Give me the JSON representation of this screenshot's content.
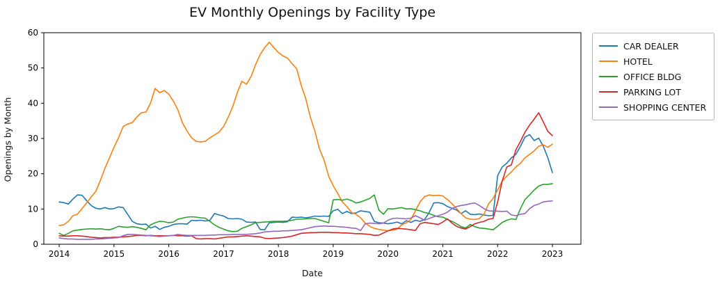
{
  "figure": {
    "background": "#ffffff",
    "spine_color": "#000000",
    "tick_label_color": "#000000"
  },
  "chart_data": {
    "type": "line",
    "title": "EV Monthly Openings by Facility Type",
    "xlabel": "Date",
    "ylabel": "Openings by Month",
    "x_months": {
      "start": "2014-01",
      "end": "2023-01",
      "step_months": 1,
      "n_points": 109
    },
    "xlim_decimal_years": [
      2013.72,
      2023.52
    ],
    "ylim": [
      0,
      60
    ],
    "xticks": [
      2014,
      2015,
      2016,
      2017,
      2018,
      2019,
      2020,
      2021,
      2022,
      2023
    ],
    "yticks": [
      0,
      10,
      20,
      30,
      40,
      50,
      60
    ],
    "grid": false,
    "legend_position": "outside-upper-right",
    "series": [
      {
        "name": "CAR DEALER",
        "color": "#1f77b4",
        "values": [
          12.0,
          11.8,
          11.4,
          12.8,
          14.0,
          13.9,
          12.4,
          11.0,
          10.2,
          10.0,
          10.4,
          10.0,
          10.1,
          10.6,
          10.4,
          8.5,
          6.5,
          5.8,
          5.6,
          5.7,
          4.6,
          5.1,
          4.2,
          4.8,
          5.1,
          5.6,
          5.8,
          5.8,
          5.7,
          6.8,
          6.7,
          6.8,
          6.6,
          6.8,
          8.7,
          8.3,
          8.0,
          7.3,
          7.2,
          7.3,
          7.1,
          6.3,
          6.2,
          6.3,
          4.2,
          4.1,
          6.1,
          6.2,
          6.3,
          6.2,
          6.4,
          7.7,
          7.6,
          7.7,
          7.5,
          7.7,
          8.0,
          7.9,
          8.0,
          7.9,
          9.5,
          9.9,
          8.7,
          9.3,
          8.7,
          8.9,
          9.5,
          9.3,
          9.1,
          6.5,
          6.1,
          6.0,
          5.8,
          6.0,
          6.3,
          5.8,
          6.7,
          6.2,
          6.8,
          6.5,
          7.0,
          9.0,
          11.7,
          11.8,
          11.5,
          10.7,
          10.2,
          9.7,
          8.7,
          9.5,
          8.5,
          8.4,
          8.6,
          8.3,
          8.1,
          8.2,
          19.5,
          21.9,
          23.0,
          24.5,
          25.5,
          27.8,
          30.4,
          31.1,
          29.4,
          30.1,
          27.8,
          24.5,
          20.3
        ]
      },
      {
        "name": "HOTEL",
        "color": "#ff7f0e",
        "values": [
          5.3,
          5.5,
          6.5,
          8.1,
          8.5,
          10.1,
          11.7,
          13.4,
          15.0,
          18.0,
          21.5,
          24.5,
          27.5,
          30.2,
          33.4,
          34.1,
          34.5,
          36.1,
          37.3,
          37.5,
          40.0,
          44.2,
          43.0,
          43.6,
          42.6,
          40.6,
          38.1,
          34.4,
          32.1,
          30.2,
          29.2,
          29.0,
          29.2,
          30.2,
          31.0,
          31.8,
          33.4,
          36.0,
          39.0,
          43.0,
          46.2,
          45.4,
          47.5,
          50.9,
          53.8,
          55.8,
          57.3,
          55.8,
          54.4,
          53.4,
          52.8,
          51.2,
          49.8,
          45.0,
          41.3,
          36.0,
          32.0,
          27.0,
          23.9,
          19.3,
          16.6,
          14.4,
          12.0,
          10.7,
          9.0,
          8.5,
          7.5,
          6.0,
          5.1,
          4.5,
          4.2,
          4.0,
          3.8,
          4.0,
          4.3,
          5.5,
          6.1,
          7.0,
          9.5,
          12.0,
          13.5,
          14.0,
          13.8,
          13.9,
          13.7,
          12.7,
          11.5,
          10.1,
          8.7,
          7.5,
          7.1,
          7.0,
          7.3,
          8.5,
          11.4,
          13.0,
          15.4,
          17.9,
          19.3,
          20.5,
          21.9,
          23.0,
          24.5,
          25.5,
          26.5,
          27.8,
          28.2,
          27.5,
          28.4
        ]
      },
      {
        "name": "OFFICE BLDG",
        "color": "#2ca02c",
        "values": [
          3.1,
          2.5,
          3.1,
          3.8,
          4.0,
          4.2,
          4.3,
          4.4,
          4.3,
          4.4,
          4.2,
          4.1,
          4.5,
          5.1,
          4.9,
          4.8,
          5.0,
          4.8,
          4.5,
          4.1,
          5.5,
          6.1,
          6.5,
          6.4,
          6.1,
          6.3,
          7.1,
          7.4,
          7.7,
          7.8,
          7.7,
          7.5,
          7.4,
          6.5,
          5.5,
          4.8,
          4.3,
          3.8,
          3.6,
          3.7,
          4.5,
          5.0,
          5.5,
          6.1,
          6.2,
          6.3,
          6.4,
          6.5,
          6.5,
          6.5,
          6.6,
          6.8,
          7.1,
          7.1,
          7.2,
          7.3,
          7.3,
          6.9,
          6.5,
          6.1,
          12.6,
          12.7,
          12.5,
          12.8,
          12.4,
          11.7,
          12.0,
          12.5,
          13.0,
          14.0,
          9.7,
          8.5,
          10.1,
          10.0,
          10.2,
          10.4,
          10.0,
          10.1,
          9.8,
          9.5,
          9.0,
          8.7,
          8.2,
          7.8,
          7.7,
          7.0,
          6.5,
          5.8,
          5.0,
          4.6,
          5.6,
          5.0,
          4.6,
          4.5,
          4.3,
          4.1,
          5.1,
          6.2,
          6.8,
          7.2,
          7.0,
          10.1,
          12.7,
          14.0,
          15.4,
          16.5,
          17.0,
          17.0,
          17.2
        ]
      },
      {
        "name": "PARKING LOT",
        "color": "#d62728",
        "values": [
          2.4,
          2.3,
          2.3,
          2.4,
          2.4,
          2.3,
          2.2,
          2.0,
          1.9,
          1.8,
          1.9,
          1.9,
          2.0,
          2.0,
          2.1,
          2.2,
          2.3,
          2.5,
          2.5,
          2.4,
          2.5,
          2.4,
          2.4,
          2.4,
          2.4,
          2.5,
          2.4,
          2.4,
          2.3,
          2.4,
          1.6,
          1.5,
          1.6,
          1.6,
          1.5,
          1.7,
          1.9,
          2.1,
          2.1,
          2.2,
          2.3,
          2.4,
          2.3,
          2.2,
          2.1,
          1.7,
          1.6,
          1.7,
          1.8,
          1.9,
          2.1,
          2.3,
          2.7,
          3.1,
          3.2,
          3.3,
          3.3,
          3.4,
          3.4,
          3.4,
          3.3,
          3.3,
          3.2,
          3.2,
          3.1,
          3.0,
          3.0,
          2.9,
          2.8,
          2.5,
          2.6,
          3.2,
          3.8,
          4.3,
          4.5,
          4.4,
          4.3,
          4.1,
          3.9,
          5.8,
          6.2,
          6.0,
          5.8,
          5.6,
          6.3,
          7.2,
          6.0,
          5.1,
          4.6,
          4.3,
          5.0,
          5.8,
          6.2,
          6.5,
          7.1,
          7.3,
          12.0,
          17.9,
          21.9,
          22.5,
          26.8,
          29.2,
          31.8,
          33.8,
          35.5,
          37.3,
          34.7,
          32.0,
          30.8
        ]
      },
      {
        "name": "SHOPPING CENTER",
        "color": "#9467bd",
        "values": [
          1.8,
          1.6,
          1.5,
          1.5,
          1.4,
          1.4,
          1.4,
          1.4,
          1.5,
          1.5,
          1.6,
          1.7,
          1.8,
          1.9,
          2.4,
          2.8,
          2.8,
          2.7,
          2.6,
          2.5,
          2.4,
          2.3,
          2.2,
          2.3,
          2.4,
          2.5,
          2.8,
          2.6,
          2.5,
          2.5,
          2.5,
          2.5,
          2.5,
          2.6,
          2.6,
          2.7,
          2.7,
          2.7,
          2.8,
          2.8,
          2.8,
          2.8,
          2.9,
          3.0,
          3.2,
          3.5,
          3.6,
          3.7,
          3.7,
          3.8,
          3.8,
          3.9,
          4.0,
          4.1,
          4.4,
          4.7,
          5.0,
          5.1,
          5.2,
          5.1,
          5.1,
          5.0,
          4.9,
          4.8,
          4.6,
          4.5,
          3.9,
          5.8,
          6.0,
          5.9,
          5.8,
          6.0,
          6.8,
          7.3,
          7.4,
          7.3,
          7.2,
          7.4,
          8.1,
          7.5,
          6.8,
          7.3,
          7.8,
          8.1,
          8.5,
          9.1,
          10.1,
          10.7,
          11.0,
          11.2,
          11.5,
          11.7,
          11.0,
          10.1,
          9.5,
          9.4,
          9.4,
          9.3,
          9.4,
          8.3,
          8.1,
          8.5,
          8.7,
          10.1,
          11.0,
          11.4,
          12.0,
          12.2,
          12.3
        ]
      }
    ]
  }
}
